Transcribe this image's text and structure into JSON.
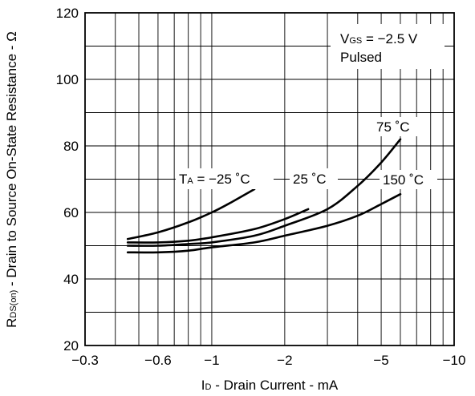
{
  "chart_data": {
    "type": "line",
    "x_scale": "log",
    "xlim": [
      -0.3,
      -10
    ],
    "ylim": [
      20,
      120
    ],
    "grid": true,
    "y_ticks": [
      20,
      40,
      60,
      80,
      100,
      120
    ],
    "y_tick_labels": [
      "20",
      "40",
      "60",
      "80",
      "100",
      "120"
    ],
    "x_ticks": [
      -0.3,
      -0.6,
      -1,
      -2,
      -5,
      -10
    ],
    "x_tick_labels": [
      "−0.3",
      "−0.6",
      "−1",
      "−2",
      "−5",
      "−10"
    ],
    "xlabel": {
      "main": "I",
      "sub": "D",
      "rest": " - Drain Current - mA"
    },
    "ylabel": {
      "main": "R",
      "sub": "DS(on)",
      "rest": " - Drain to Source On-State Resistance - Ω"
    },
    "conditions": {
      "line1": {
        "main": "V",
        "sub": "GS",
        "rest": " = −2.5 V"
      },
      "line2": "Pulsed"
    },
    "series": [
      {
        "name": "T_A = −25 ˚C",
        "x": [
          -0.45,
          -0.6,
          -0.8,
          -1.0,
          -1.2,
          -1.5
        ],
        "y": [
          52,
          54,
          57,
          60,
          63,
          67
        ]
      },
      {
        "name": "25 ˚C",
        "x": [
          -0.45,
          -0.6,
          -0.8,
          -1.0,
          -1.5,
          -2.0,
          -2.5
        ],
        "y": [
          51,
          51,
          51.5,
          52.5,
          55,
          58,
          61
        ]
      },
      {
        "name": "75 ˚C",
        "x": [
          -0.45,
          -0.6,
          -0.8,
          -1.0,
          -1.5,
          -2.0,
          -3.0,
          -4.0,
          -5.0,
          -6.0
        ],
        "y": [
          50,
          50,
          50.5,
          51,
          53,
          56,
          61,
          68,
          75,
          82
        ]
      },
      {
        "name": "150 ˚C",
        "x": [
          -0.45,
          -0.6,
          -0.8,
          -1.0,
          -1.5,
          -2.0,
          -3.0,
          -4.0,
          -5.0,
          -6.0
        ],
        "y": [
          48,
          48,
          48.5,
          49.5,
          51,
          53,
          56,
          59,
          62.5,
          65.5
        ]
      }
    ],
    "annotations": {
      "ta_main": "T",
      "ta_sub": "A",
      "ta_rest": " = −25 ˚C",
      "t25": "25 ˚C",
      "t75": "75 ˚C",
      "t150": "150 ˚C"
    }
  }
}
